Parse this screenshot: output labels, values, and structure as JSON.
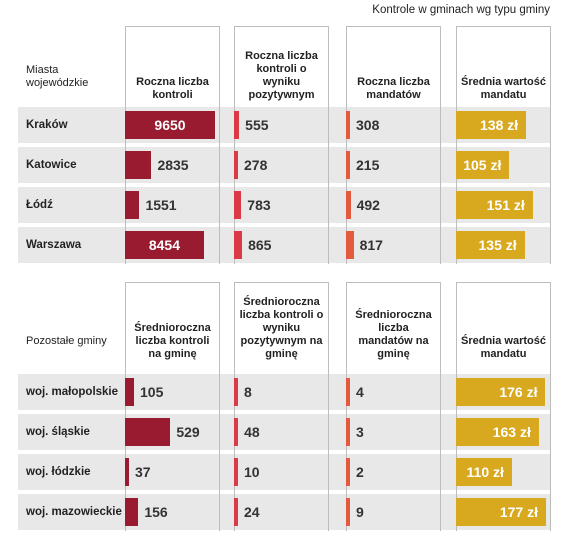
{
  "subtitle": "Kontrole w gminach wg typu gminy",
  "colors": {
    "kontrole": "#981b2f",
    "pozytywne": "#d93a45",
    "mandaty": "#e35b3c",
    "srednia": "#d8a81f",
    "row_bg": "#e8e8e9"
  },
  "chart_data": [
    {
      "type": "table",
      "group_label": "Miasta wojewódzkie",
      "columns": [
        {
          "key": "kontrole",
          "header": "Roczna liczba kontroli",
          "max": 9650
        },
        {
          "key": "pozytywne",
          "header": "Roczna liczba kontroli o wyniku pozytywnym",
          "max": 9650
        },
        {
          "key": "mandaty",
          "header": "Roczna liczba mandatów",
          "max": 9650
        },
        {
          "key": "srednia",
          "header": "Średnia wartość mandatu",
          "max": 177,
          "unit": "zł"
        }
      ],
      "rows": [
        {
          "label": "Kraków",
          "values": [
            9650,
            555,
            308,
            138
          ],
          "display": [
            "9650",
            "555",
            "308",
            "138 zł"
          ]
        },
        {
          "label": "Katowice",
          "values": [
            2835,
            278,
            215,
            105
          ],
          "display": [
            "2835",
            "278",
            "215",
            "105 zł"
          ]
        },
        {
          "label": "Łódź",
          "values": [
            1551,
            783,
            492,
            151
          ],
          "display": [
            "1551",
            "783",
            "492",
            "151 zł"
          ]
        },
        {
          "label": "Warszawa",
          "values": [
            8454,
            865,
            817,
            135
          ],
          "display": [
            "8454",
            "865",
            "817",
            "135 zł"
          ]
        }
      ]
    },
    {
      "type": "table",
      "group_label": "Pozostałe gminy",
      "columns": [
        {
          "key": "kontrole",
          "header": "Średnioroczna liczba kontroli na gminę",
          "max": 1050
        },
        {
          "key": "pozytywne",
          "header": "Średnioroczna liczba kontroli o wyniku pozytywnym na gminę",
          "max": 1050
        },
        {
          "key": "mandaty",
          "header": "Średnioroczna liczba mandatów na gminę",
          "max": 1050
        },
        {
          "key": "srednia",
          "header": "Średnia wartość mandatu",
          "max": 177,
          "unit": "zł"
        }
      ],
      "rows": [
        {
          "label": "woj. małopolskie",
          "values": [
            105,
            8,
            4,
            176
          ],
          "display": [
            "105",
            "8",
            "4",
            "176 zł"
          ]
        },
        {
          "label": "woj. śląskie",
          "values": [
            529,
            48,
            3,
            163
          ],
          "display": [
            "529",
            "48",
            "3",
            "163 zł"
          ]
        },
        {
          "label": "woj. łódzkie",
          "values": [
            37,
            10,
            2,
            110
          ],
          "display": [
            "37",
            "10",
            "2",
            "110 zł"
          ]
        },
        {
          "label": "woj. mazowieckie",
          "values": [
            156,
            24,
            9,
            177
          ],
          "display": [
            "156",
            "24",
            "9",
            "177 zł"
          ]
        }
      ]
    }
  ]
}
